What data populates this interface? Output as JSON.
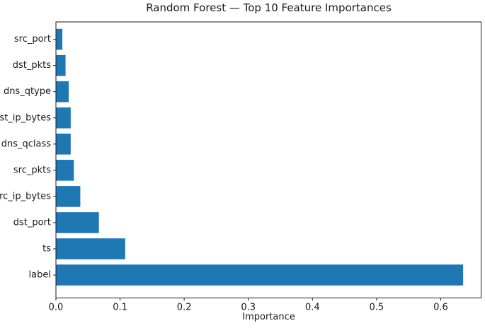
{
  "figure": {
    "background": "#ffffff",
    "text_color": "#1a1a1a",
    "spine_color": "#1a1a1a"
  },
  "chart_data": {
    "type": "bar",
    "orientation": "horizontal",
    "title": "Random Forest — Top 10 Feature Importances",
    "xlabel": "Importance",
    "ylabel": "",
    "categories": [
      "src_port",
      "dst_pkts",
      "dns_qtype",
      "dst_ip_bytes",
      "dns_qclass",
      "src_pkts",
      "src_ip_bytes",
      "dst_port",
      "ts",
      "label"
    ],
    "values": [
      0.01,
      0.015,
      0.02,
      0.023,
      0.023,
      0.028,
      0.038,
      0.067,
      0.108,
      0.635
    ],
    "bar_color": "#1f77b4",
    "xticks": [
      0.0,
      0.1,
      0.2,
      0.3,
      0.4,
      0.5,
      0.6
    ],
    "xtick_labels": [
      "0.0",
      "0.1",
      "0.2",
      "0.3",
      "0.4",
      "0.5",
      "0.6"
    ],
    "xlim": [
      0,
      0.663
    ],
    "grid": false,
    "legend": null,
    "category_order": "top-to-bottom as displayed"
  }
}
